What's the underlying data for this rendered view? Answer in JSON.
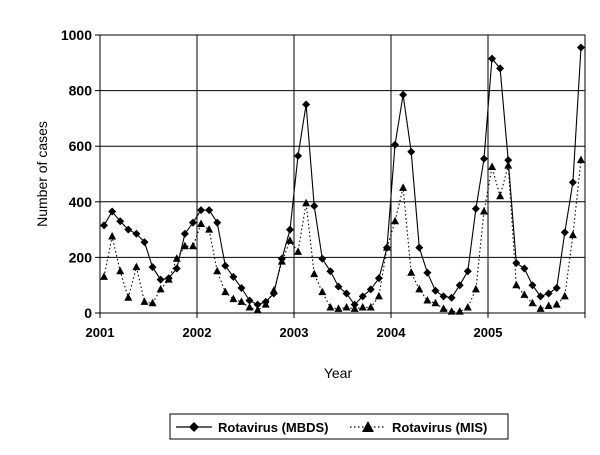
{
  "chart_data": {
    "type": "line",
    "title": "",
    "xlabel": "Year",
    "ylabel": "Number of cases",
    "ylim": [
      0,
      1000
    ],
    "yticks": [
      "0",
      "200",
      "400",
      "600",
      "800",
      "1000"
    ],
    "xticks": [
      "2001",
      "2002",
      "2003",
      "2004",
      "2005"
    ],
    "grid": "vertical lines at each year start, horizontal lines at each y tick",
    "legend_position": "bottom-center",
    "series": [
      {
        "name": "Rotavirus (MBDS)",
        "marker": "diamond",
        "line_style": "solid",
        "color": "#000000",
        "values": [
          315,
          365,
          330,
          300,
          285,
          255,
          165,
          120,
          125,
          160,
          285,
          325,
          370,
          370,
          325,
          170,
          130,
          90,
          45,
          30,
          40,
          70,
          195,
          300,
          565,
          750,
          385,
          195,
          150,
          95,
          70,
          30,
          60,
          85,
          125,
          235,
          605,
          785,
          580,
          235,
          145,
          80,
          60,
          55,
          100,
          150,
          375,
          555,
          915,
          880,
          550,
          180,
          160,
          100,
          60,
          70,
          90,
          290,
          470,
          955
        ]
      },
      {
        "name": "Rotavirus (MIS)",
        "marker": "triangle",
        "line_style": "dotted",
        "color": "#000000",
        "values": [
          130,
          275,
          150,
          55,
          165,
          40,
          35,
          85,
          120,
          195,
          240,
          240,
          320,
          300,
          150,
          75,
          50,
          40,
          20,
          10,
          30,
          80,
          185,
          260,
          220,
          395,
          140,
          75,
          20,
          15,
          20,
          15,
          20,
          20,
          60,
          235,
          330,
          450,
          145,
          85,
          45,
          35,
          15,
          5,
          5,
          20,
          85,
          365,
          525,
          420,
          530,
          100,
          65,
          35,
          15,
          25,
          30,
          60,
          280,
          550
        ]
      }
    ]
  }
}
